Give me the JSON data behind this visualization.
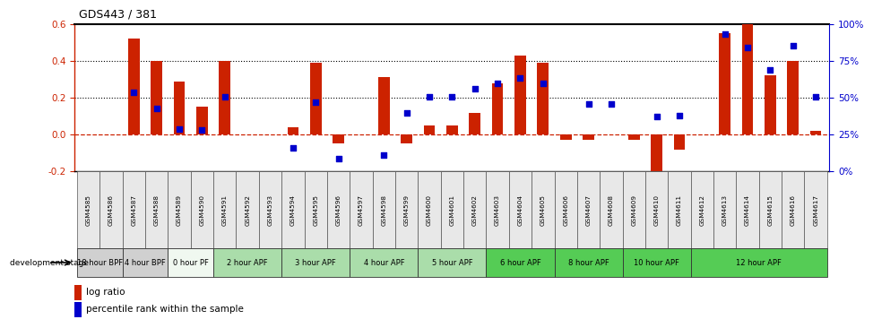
{
  "title": "GDS443 / 381",
  "samples": [
    "GSM4585",
    "GSM4586",
    "GSM4587",
    "GSM4588",
    "GSM4589",
    "GSM4590",
    "GSM4591",
    "GSM4592",
    "GSM4593",
    "GSM4594",
    "GSM4595",
    "GSM4596",
    "GSM4597",
    "GSM4598",
    "GSM4599",
    "GSM4600",
    "GSM4601",
    "GSM4602",
    "GSM4603",
    "GSM4604",
    "GSM4605",
    "GSM4606",
    "GSM4607",
    "GSM4608",
    "GSM4609",
    "GSM4610",
    "GSM4611",
    "GSM4612",
    "GSM4613",
    "GSM4614",
    "GSM4615",
    "GSM4616",
    "GSM4617"
  ],
  "log_ratio": [
    0.0,
    0.0,
    0.52,
    0.4,
    0.29,
    0.15,
    0.4,
    0.0,
    0.0,
    0.04,
    0.39,
    -0.05,
    0.0,
    0.31,
    -0.05,
    0.05,
    0.05,
    0.12,
    0.28,
    0.43,
    0.39,
    -0.03,
    -0.03,
    0.0,
    -0.03,
    -0.24,
    -0.08,
    0.0,
    0.55,
    0.67,
    0.32,
    0.4,
    0.02
  ],
  "percentile_pct": [
    0.0,
    0.0,
    53.5,
    42.5,
    29.0,
    28.0,
    50.5,
    0.0,
    0.0,
    16.0,
    47.0,
    9.0,
    0.0,
    11.0,
    40.0,
    50.5,
    50.5,
    56.0,
    60.0,
    63.5,
    60.0,
    0.0,
    45.5,
    45.5,
    0.0,
    37.0,
    38.0,
    0.0,
    93.0,
    84.0,
    69.0,
    85.0,
    50.5
  ],
  "groups": [
    {
      "label": "18 hour BPF",
      "start": 0,
      "end": 2,
      "color": "#d0d0d0"
    },
    {
      "label": "4 hour BPF",
      "start": 2,
      "end": 4,
      "color": "#d0d0d0"
    },
    {
      "label": "0 hour PF",
      "start": 4,
      "end": 6,
      "color": "#f0f8f0"
    },
    {
      "label": "2 hour APF",
      "start": 6,
      "end": 9,
      "color": "#aaddaa"
    },
    {
      "label": "3 hour APF",
      "start": 9,
      "end": 12,
      "color": "#aaddaa"
    },
    {
      "label": "4 hour APF",
      "start": 12,
      "end": 15,
      "color": "#aaddaa"
    },
    {
      "label": "5 hour APF",
      "start": 15,
      "end": 18,
      "color": "#aaddaa"
    },
    {
      "label": "6 hour APF",
      "start": 18,
      "end": 21,
      "color": "#55cc55"
    },
    {
      "label": "8 hour APF",
      "start": 21,
      "end": 24,
      "color": "#55cc55"
    },
    {
      "label": "10 hour APF",
      "start": 24,
      "end": 27,
      "color": "#55cc55"
    },
    {
      "label": "12 hour APF",
      "start": 27,
      "end": 33,
      "color": "#55cc55"
    }
  ],
  "bar_color": "#cc2200",
  "dot_color": "#0000cc",
  "ylim_left": [
    -0.2,
    0.6
  ],
  "ylim_right": [
    0,
    100
  ],
  "left_yticks": [
    -0.2,
    0.0,
    0.2,
    0.4,
    0.6
  ],
  "right_yticks": [
    0,
    25,
    50,
    75,
    100
  ],
  "right_yticklabels": [
    "0%",
    "25%",
    "50%",
    "75%",
    "100%"
  ]
}
